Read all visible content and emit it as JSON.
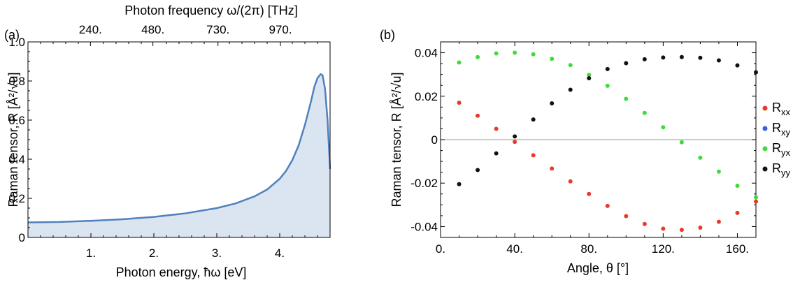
{
  "chart_data": [
    {
      "type": "area",
      "panel_label": "(a)",
      "title": "",
      "xlabel": "Photon energy, ħω [eV]",
      "ylabel": "Raman tensor, R [Å²/√u]",
      "top_axis_label": "Photon frequency ω/(2π) [THz]",
      "xlim": [
        0,
        4.8
      ],
      "ylim": [
        0,
        1.0
      ],
      "x_ticks": [
        1,
        2,
        3,
        4
      ],
      "x_tick_labels": [
        "1.",
        "2.",
        "3.",
        "4."
      ],
      "y_ticks": [
        0,
        0.2,
        0.4,
        0.6,
        0.8,
        1.0
      ],
      "y_tick_labels": [
        "0",
        "0.2",
        "0.4",
        "0.6",
        "0.8",
        "1.0"
      ],
      "top_ticks_thz": [
        240,
        480,
        730,
        970
      ],
      "top_tick_labels": [
        "240.",
        "480.",
        "730.",
        "970."
      ],
      "line_color": "#4f81bd",
      "fill_color": "#dbe5f1",
      "x": [
        0.0,
        0.5,
        1.0,
        1.5,
        2.0,
        2.5,
        3.0,
        3.3,
        3.6,
        3.8,
        4.0,
        4.1,
        4.2,
        4.3,
        4.4,
        4.5,
        4.55,
        4.6,
        4.65,
        4.68,
        4.72,
        4.76,
        4.8
      ],
      "y": [
        0.077,
        0.079,
        0.085,
        0.093,
        0.105,
        0.123,
        0.15,
        0.174,
        0.21,
        0.245,
        0.3,
        0.34,
        0.395,
        0.47,
        0.575,
        0.7,
        0.77,
        0.815,
        0.835,
        0.83,
        0.76,
        0.6,
        0.35
      ]
    },
    {
      "type": "scatter",
      "panel_label": "(b)",
      "title": "",
      "xlabel": "Angle, θ [°]",
      "ylabel": "Raman tensor, R [Å²/√u]",
      "xlim": [
        0,
        170
      ],
      "ylim": [
        -0.045,
        0.045
      ],
      "x_ticks": [
        0,
        40,
        80,
        120,
        160
      ],
      "x_tick_labels": [
        "0.",
        "40.",
        "80.",
        "120.",
        "160."
      ],
      "y_ticks": [
        -0.04,
        -0.02,
        0,
        0.02,
        0.04
      ],
      "y_tick_labels": [
        "-0.04",
        "-0.02",
        "0",
        "0.02",
        "0.04"
      ],
      "x": [
        10,
        20,
        30,
        40,
        50,
        60,
        70,
        80,
        90,
        100,
        110,
        120,
        130,
        140,
        150,
        160,
        170
      ],
      "series": [
        {
          "name": "Rxx",
          "base": "R",
          "sub": "xx",
          "color": "#e8392a",
          "values": [
            0.017,
            0.011,
            0.005,
            -0.001,
            -0.0072,
            -0.0133,
            -0.0192,
            -0.025,
            -0.0305,
            -0.0352,
            -0.0388,
            -0.041,
            -0.0415,
            -0.0405,
            -0.0378,
            -0.0337,
            -0.0285
          ]
        },
        {
          "name": "Rxy",
          "base": "R",
          "sub": "xy",
          "color": "#3d5ce0",
          "values": []
        },
        {
          "name": "Ryx",
          "base": "R",
          "sub": "yx",
          "color": "#3ddc3a",
          "values": [
            0.0355,
            0.038,
            0.0397,
            0.04,
            0.0393,
            0.0372,
            0.0343,
            0.0298,
            0.0248,
            0.0188,
            0.0123,
            0.0057,
            -0.0012,
            -0.0083,
            -0.0147,
            -0.0212,
            -0.0265
          ]
        },
        {
          "name": "Ryy",
          "base": "R",
          "sub": "yy",
          "color": "#111111",
          "values": [
            -0.0205,
            -0.014,
            -0.0063,
            0.0015,
            0.0093,
            0.0167,
            0.023,
            0.0283,
            0.0325,
            0.0352,
            0.037,
            0.0378,
            0.038,
            0.0377,
            0.0365,
            0.0342,
            0.031
          ]
        }
      ]
    }
  ]
}
